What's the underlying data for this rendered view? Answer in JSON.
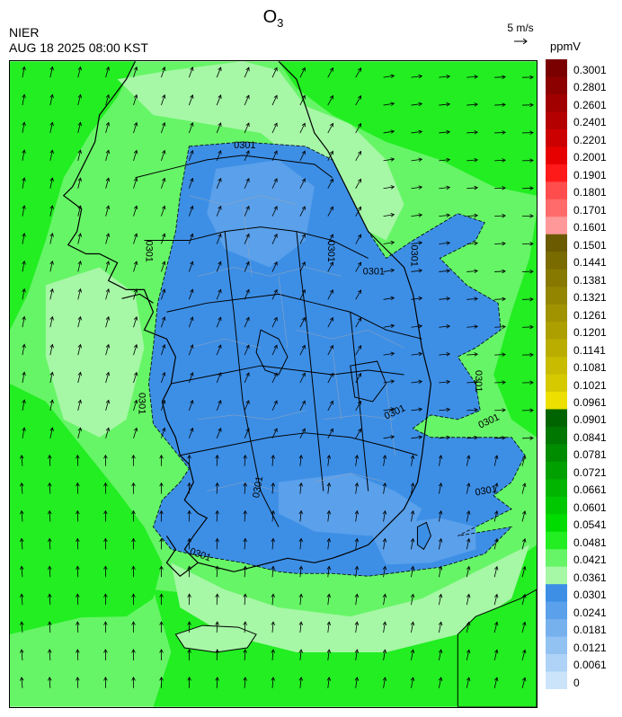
{
  "header": {
    "title_main": "O",
    "title_sub": "3",
    "agency": "NIER",
    "datetime": "AUG 18 2025 08:00 KST",
    "wind_ref_label": "5 m/s",
    "unit": "ppmV"
  },
  "map": {
    "contour_labels": [
      {
        "text": "0301"
      },
      {
        "text": "0301"
      },
      {
        "text": "0301"
      },
      {
        "text": "0301"
      },
      {
        "text": "0301"
      },
      {
        "text": "0301"
      },
      {
        "text": "0301"
      },
      {
        "text": "0301"
      },
      {
        "text": "0301"
      },
      {
        "text": "0301"
      },
      {
        "text": "0301"
      },
      {
        "text": "0301"
      }
    ],
    "dominant_level": "0.0241-0.0301",
    "background_level": "0.0361-0.0481"
  },
  "colorbar": {
    "levels": [
      "0.3001",
      "0.2801",
      "0.2601",
      "0.2401",
      "0.2201",
      "0.2001",
      "0.1901",
      "0.1801",
      "0.1701",
      "0.1601",
      "0.1501",
      "0.1441",
      "0.1381",
      "0.1321",
      "0.1261",
      "0.1201",
      "0.1141",
      "0.1081",
      "0.1021",
      "0.0961",
      "0.0901",
      "0.0841",
      "0.0781",
      "0.0721",
      "0.0661",
      "0.0601",
      "0.0541",
      "0.0481",
      "0.0421",
      "0.0361",
      "0.0301",
      "0.0241",
      "0.0181",
      "0.0121",
      "0.0061",
      "0"
    ],
    "colors": [
      "#7a0000",
      "#8c0000",
      "#a00000",
      "#b40000",
      "#cc0000",
      "#e60000",
      "#ff1a1a",
      "#ff4d4d",
      "#ff6b6b",
      "#ff9999",
      "#6b5a00",
      "#7a6b00",
      "#877800",
      "#948500",
      "#a19200",
      "#ad9f00",
      "#baad00",
      "#c8bb00",
      "#d6c900",
      "#ede000",
      "#006400",
      "#007700",
      "#008c00",
      "#00a000",
      "#00b400",
      "#00c800",
      "#00dc00",
      "#22ee22",
      "#66f566",
      "#a6f7a6",
      "#3d8fe6",
      "#5aa0ea",
      "#76b1ee",
      "#92c2f2",
      "#aed3f6",
      "#cce4fa"
    ]
  }
}
